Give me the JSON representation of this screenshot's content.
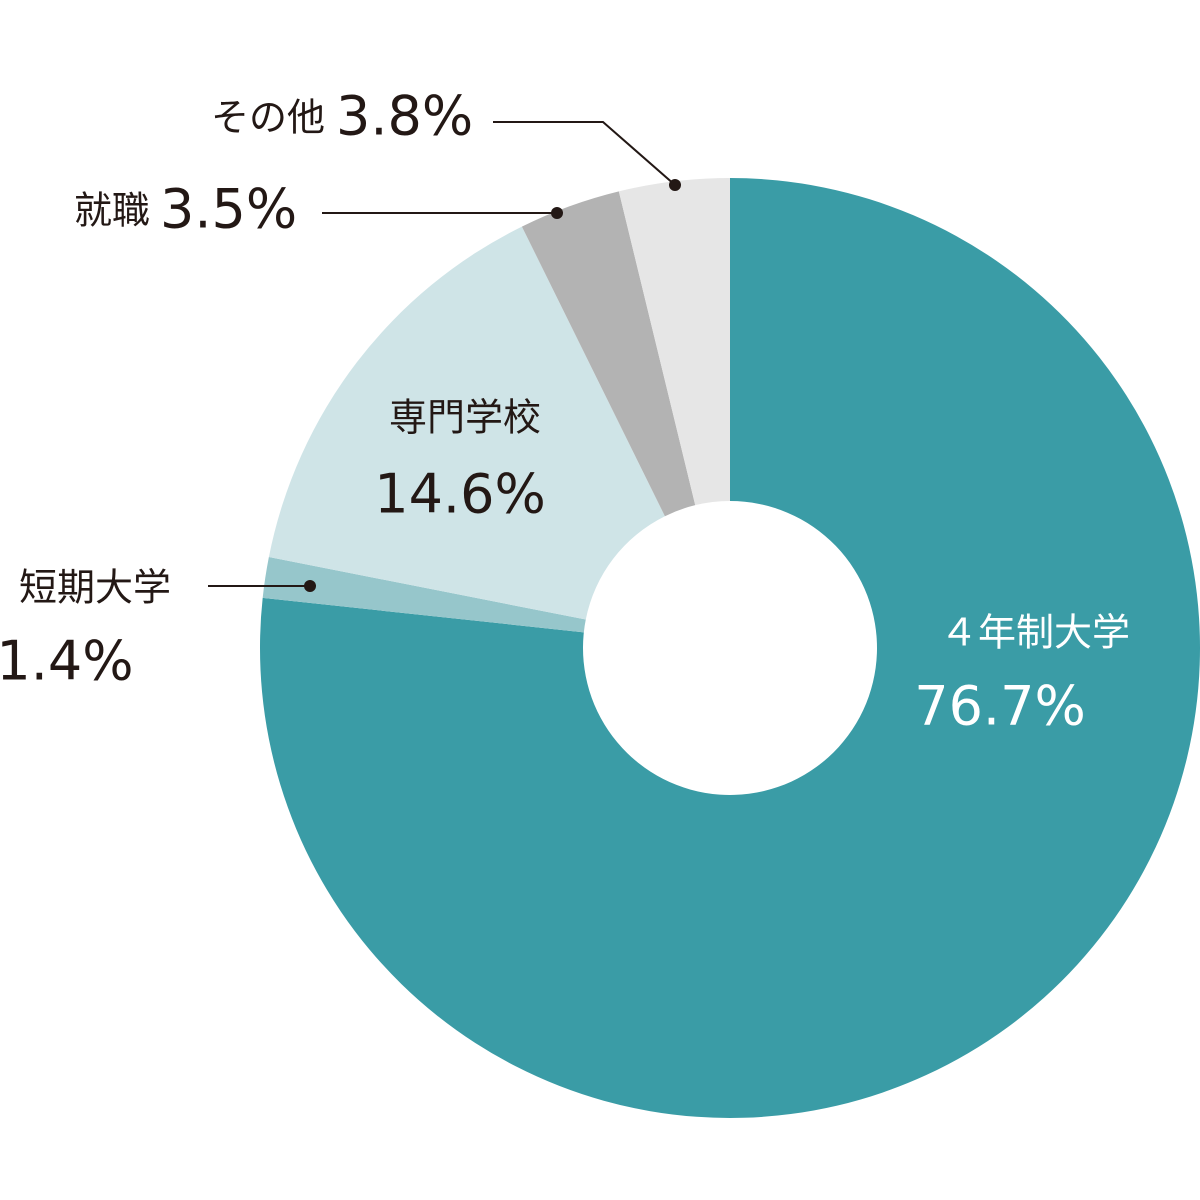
{
  "chart_data": {
    "type": "donut",
    "categories": [
      "４年制大学",
      "短期大学",
      "専門学校",
      "就職",
      "その他"
    ],
    "values": [
      76.7,
      1.4,
      14.6,
      3.5,
      3.8
    ],
    "value_labels": [
      "76.7%",
      "1.4%",
      "14.6%",
      "3.5%",
      "3.8%"
    ],
    "colors": [
      "#3a9ca6",
      "#96c6cb",
      "#cfe4e7",
      "#b3b3b3",
      "#e6e6e6"
    ]
  }
}
